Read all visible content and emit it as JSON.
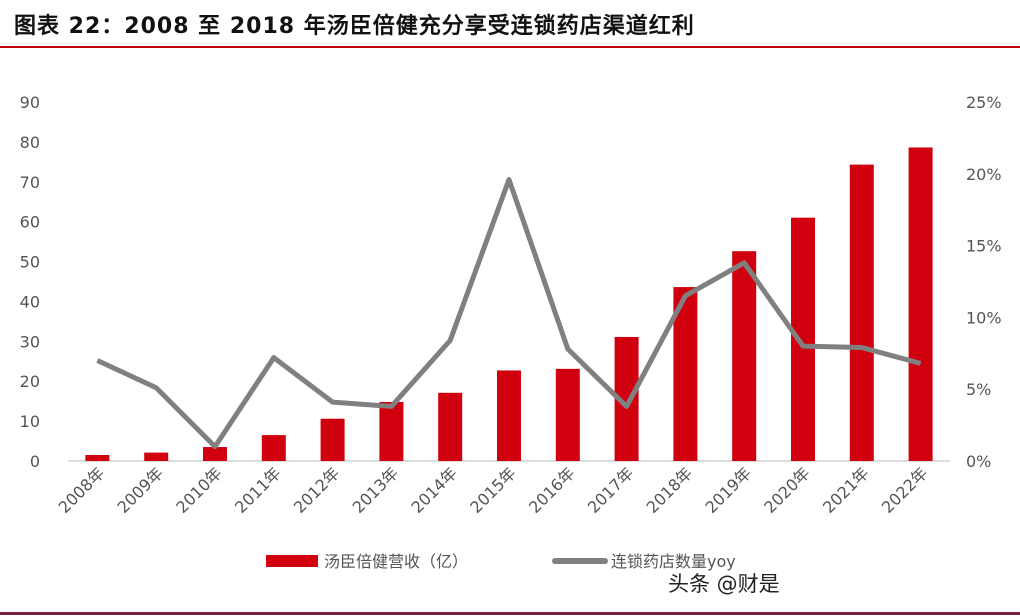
{
  "title": "图表 22：2008 至 2018 年汤臣倍健充分享受连锁药店渠道红利",
  "watermark": "头条 @财是",
  "chart_data": {
    "type": "bar+line",
    "categories": [
      "2008年",
      "2009年",
      "2010年",
      "2011年",
      "2012年",
      "2013年",
      "2014年",
      "2015年",
      "2016年",
      "2017年",
      "2018年",
      "2019年",
      "2020年",
      "2021年",
      "2022年"
    ],
    "series": [
      {
        "name": "汤臣倍健营收（亿）",
        "type": "bar",
        "axis": "left",
        "color": "#d0000f",
        "values": [
          1.5,
          2.1,
          3.5,
          6.5,
          10.6,
          14.8,
          17.1,
          22.7,
          23.1,
          31.1,
          43.6,
          52.6,
          61.0,
          74.3,
          78.6
        ]
      },
      {
        "name": "连锁药店数量yoy",
        "type": "line",
        "axis": "right",
        "color": "#808080",
        "values": [
          7.0,
          5.1,
          1.0,
          7.2,
          4.1,
          3.8,
          8.4,
          19.6,
          7.8,
          3.8,
          11.5,
          13.8,
          8.0,
          7.9,
          6.8
        ]
      }
    ],
    "left_axis": {
      "ylim": [
        0,
        90
      ],
      "ticks": [
        "0",
        "10",
        "20",
        "30",
        "40",
        "50",
        "60",
        "70",
        "80",
        "90"
      ]
    },
    "right_axis": {
      "ylim": [
        0,
        25
      ],
      "ticks": [
        "0%",
        "5%",
        "10%",
        "15%",
        "20%",
        "25%"
      ]
    },
    "grid": false,
    "legend_placement": "bottom"
  }
}
